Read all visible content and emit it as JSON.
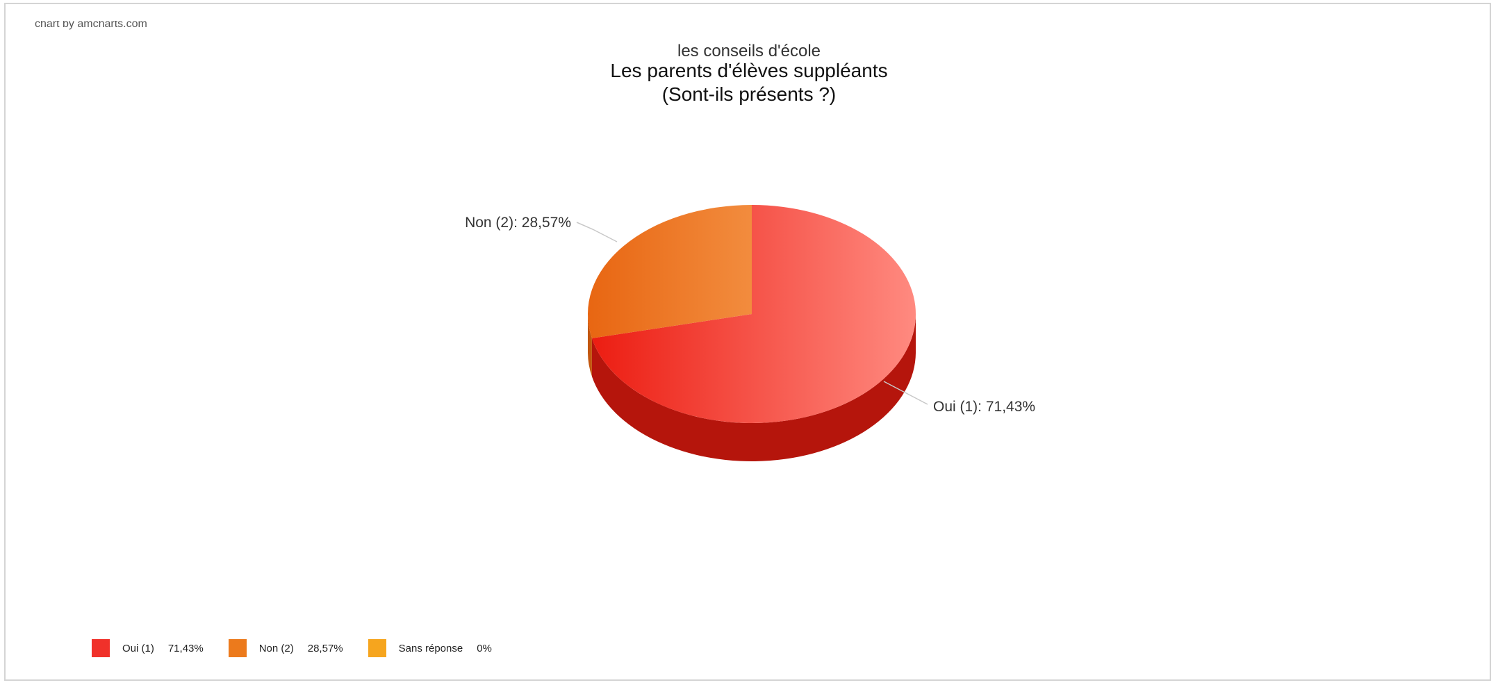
{
  "credit": "chart by amcharts.com",
  "subtitle": "les conseils d'école",
  "title": "Les parents d'élèves suppléants",
  "title2": "(Sont-ils présents ?)",
  "chart_data": {
    "type": "pie",
    "three_d": true,
    "title": "Les parents d'élèves suppléants",
    "subtitle": "les conseils d'école",
    "slices": [
      {
        "label": "Oui (1)",
        "value": 71.43,
        "display": "Oui (1): 71,43%",
        "legend_value": "71,43%",
        "color": "#f0312a"
      },
      {
        "label": "Non (2)",
        "value": 28.57,
        "display": "Non (2): 28,57%",
        "legend_value": "28,57%",
        "color": "#ec7a1c"
      },
      {
        "label": "Sans réponse",
        "value": 0,
        "display": "Sans réponse: 0%",
        "legend_value": "0%",
        "color": "#f6a51e"
      }
    ],
    "legend_position": "bottom-left"
  }
}
